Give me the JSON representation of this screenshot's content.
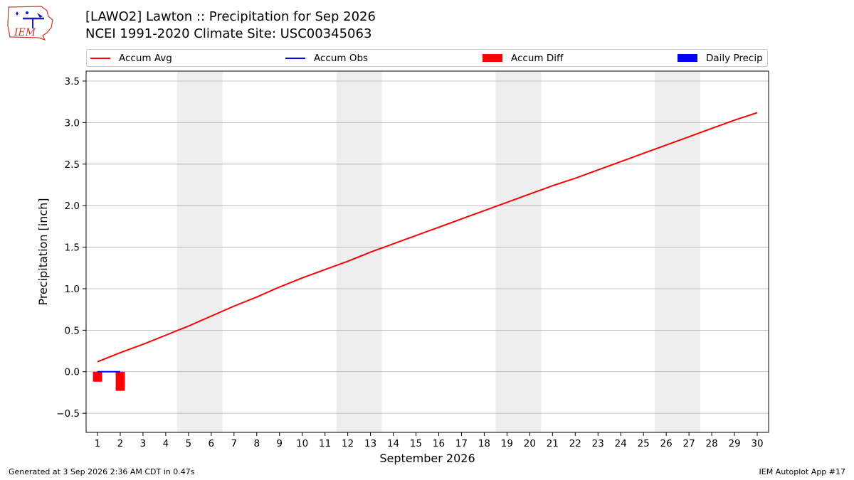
{
  "header": {
    "logo_text": "IEM",
    "title_line1": "[LAWO2] Lawton :: Precipitation for Sep 2026",
    "title_line2": "NCEI 1991-2020 Climate Site: USC00345063"
  },
  "colors": {
    "accum_avg": "#ff0000",
    "accum_obs": "#0000ff",
    "accum_diff": "#ff0000",
    "daily_precip": "#0000ff",
    "weekend_band": "#eeeeee",
    "grid": "#b0b0b0"
  },
  "legend": {
    "placement": "top, above plot",
    "items": [
      {
        "label": "Accum Avg",
        "kind": "line",
        "color": "#ff0000"
      },
      {
        "label": "Accum Obs",
        "kind": "line",
        "color": "#0000ff"
      },
      {
        "label": "Accum Diff",
        "kind": "box",
        "color": "#ff0000"
      },
      {
        "label": "Daily Precip",
        "kind": "box",
        "color": "#0000ff"
      }
    ]
  },
  "chart_data": {
    "type": "line",
    "title": "[LAWO2] Lawton :: Precipitation for Sep 2026",
    "subtitle": "NCEI 1991-2020 Climate Site: USC00345063",
    "xlabel": "September 2026",
    "ylabel": "Precipitation [inch]",
    "xlim": [
      0.5,
      30.5
    ],
    "ylim": [
      -0.73,
      3.62
    ],
    "grid": true,
    "x_ticks": [
      1,
      2,
      3,
      4,
      5,
      6,
      7,
      8,
      9,
      10,
      11,
      12,
      13,
      14,
      15,
      16,
      17,
      18,
      19,
      20,
      21,
      22,
      23,
      24,
      25,
      26,
      27,
      28,
      29,
      30
    ],
    "y_ticks": [
      -0.5,
      0.0,
      0.5,
      1.0,
      1.5,
      2.0,
      2.5,
      3.0,
      3.5
    ],
    "y_tick_labels": [
      "−0.5",
      "0.0",
      "0.5",
      "1.0",
      "1.5",
      "2.0",
      "2.5",
      "3.0",
      "3.5"
    ],
    "weekend_bands": [
      [
        4.5,
        6.5
      ],
      [
        11.5,
        13.5
      ],
      [
        18.5,
        20.5
      ],
      [
        25.5,
        27.5
      ]
    ],
    "series": [
      {
        "name": "Accum Avg",
        "kind": "line",
        "color": "#ff0000",
        "x": [
          1,
          2,
          3,
          4,
          5,
          6,
          7,
          8,
          9,
          10,
          11,
          12,
          13,
          14,
          15,
          16,
          17,
          18,
          19,
          20,
          21,
          22,
          23,
          24,
          25,
          26,
          27,
          28,
          29,
          30
        ],
        "values": [
          0.12,
          0.23,
          0.33,
          0.44,
          0.55,
          0.67,
          0.79,
          0.9,
          1.02,
          1.13,
          1.23,
          1.33,
          1.44,
          1.54,
          1.64,
          1.74,
          1.84,
          1.94,
          2.04,
          2.14,
          2.24,
          2.33,
          2.43,
          2.53,
          2.63,
          2.73,
          2.83,
          2.93,
          3.03,
          3.12
        ]
      },
      {
        "name": "Accum Obs",
        "kind": "line",
        "color": "#0000ff",
        "x": [
          1,
          2
        ],
        "values": [
          0.0,
          0.0
        ]
      },
      {
        "name": "Accum Diff",
        "kind": "bar",
        "color": "#ff0000",
        "x": [
          1,
          2
        ],
        "values": [
          -0.12,
          -0.23
        ]
      },
      {
        "name": "Daily Precip",
        "kind": "bar",
        "color": "#0000ff",
        "x": [
          1,
          2
        ],
        "values": [
          0.0,
          0.0
        ]
      }
    ]
  },
  "footer": {
    "generated": "Generated at 3 Sep 2026 2:36 AM CDT in 0.47s",
    "app": "IEM Autoplot App #17"
  }
}
